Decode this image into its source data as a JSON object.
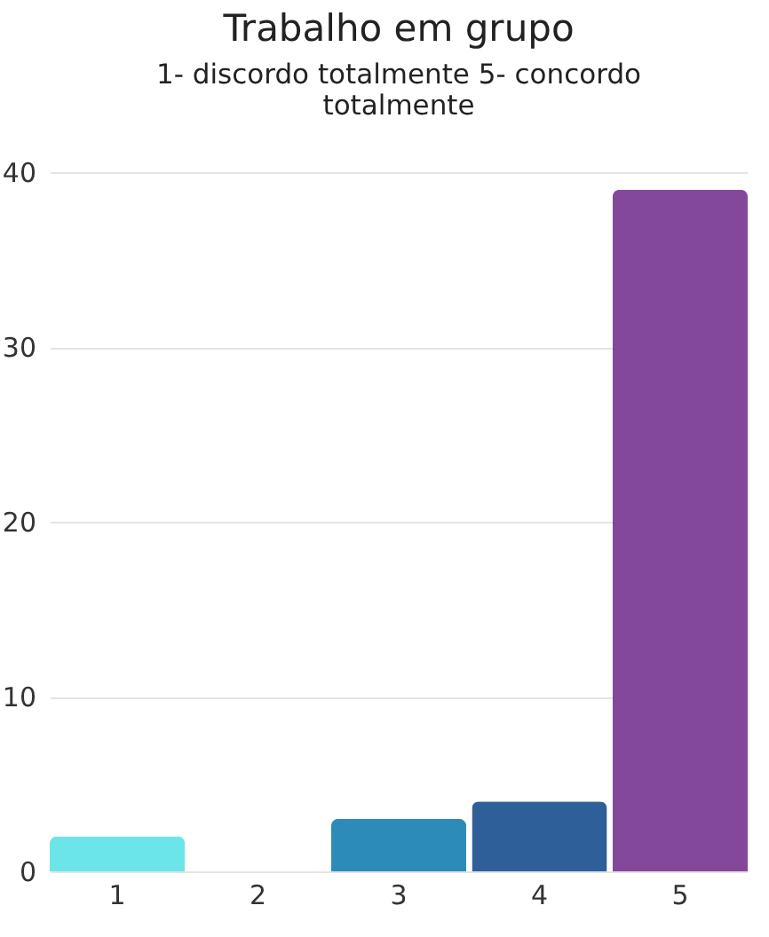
{
  "chart_data": {
    "type": "bar",
    "title": "Trabalho em grupo",
    "subtitle": "1- discordo totalmente 5- concordo totalmente",
    "categories": [
      "1",
      "2",
      "3",
      "4",
      "5"
    ],
    "values": [
      2,
      0,
      3,
      4,
      39
    ],
    "colors": [
      "#6ce5e8",
      "#41b8d5",
      "#2d8bba",
      "#2f5f98",
      "#84489b"
    ],
    "ylim": [
      0,
      40
    ],
    "yticks": [
      0,
      10,
      20,
      30,
      40
    ],
    "grid": "y"
  }
}
